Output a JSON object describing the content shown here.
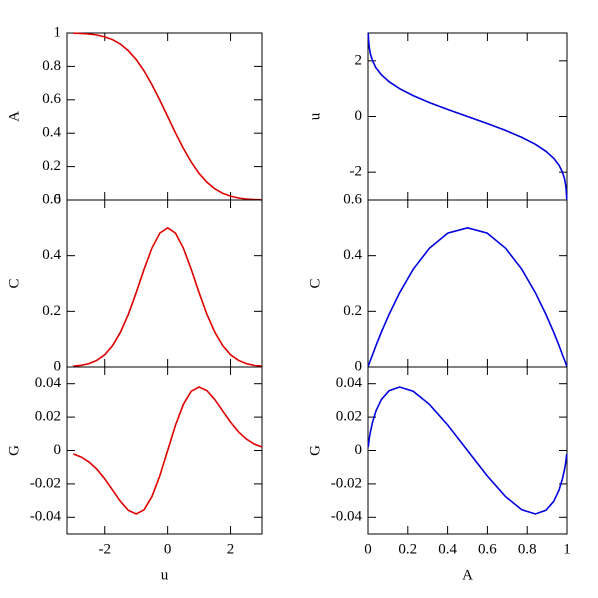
{
  "chart_data": [
    {
      "type": "line",
      "ylabel": "A",
      "color": "#e00000",
      "xlim": [
        -3.2,
        3
      ],
      "ylim": [
        0,
        1
      ],
      "xticks": [
        -2,
        0,
        2
      ],
      "yticks": [
        0,
        0.2,
        0.4,
        0.6,
        0.8,
        1
      ],
      "x": [
        -3,
        -2.75,
        -2.5,
        -2.25,
        -2,
        -1.75,
        -1.5,
        -1.25,
        -1,
        -0.75,
        -0.5,
        -0.25,
        0,
        0.25,
        0.5,
        0.75,
        1,
        1.25,
        1.5,
        1.75,
        2,
        2.25,
        2.5,
        2.75,
        3
      ],
      "values": [
        0.999,
        0.997,
        0.994,
        0.988,
        0.977,
        0.96,
        0.933,
        0.894,
        0.841,
        0.773,
        0.691,
        0.599,
        0.5,
        0.401,
        0.309,
        0.227,
        0.159,
        0.106,
        0.067,
        0.04,
        0.023,
        0.012,
        0.006,
        0.003,
        0.001
      ]
    },
    {
      "type": "line",
      "ylabel": "C",
      "color": "#e00000",
      "xlim": [
        -3.2,
        3
      ],
      "ylim": [
        0,
        0.6
      ],
      "xticks": [
        -2,
        0,
        2
      ],
      "yticks": [
        0,
        0.2,
        0.4,
        0.6
      ],
      "x": [
        -3,
        -2.75,
        -2.5,
        -2.25,
        -2,
        -1.75,
        -1.5,
        -1.25,
        -1,
        -0.75,
        -0.5,
        -0.25,
        0,
        0.25,
        0.5,
        0.75,
        1,
        1.25,
        1.5,
        1.75,
        2,
        2.25,
        2.5,
        2.75,
        3
      ],
      "values": [
        0.003,
        0.006,
        0.012,
        0.024,
        0.044,
        0.077,
        0.125,
        0.189,
        0.267,
        0.351,
        0.427,
        0.481,
        0.5,
        0.481,
        0.427,
        0.351,
        0.267,
        0.189,
        0.125,
        0.077,
        0.044,
        0.024,
        0.012,
        0.006,
        0.003
      ]
    },
    {
      "type": "line",
      "ylabel": "G",
      "xlabel": "u",
      "color": "#e00000",
      "xlim": [
        -3.2,
        3
      ],
      "ylim": [
        -0.05,
        0.05
      ],
      "xticks": [
        -2,
        0,
        2
      ],
      "yticks": [
        -0.04,
        -0.02,
        0,
        0.02,
        0.04
      ],
      "x": [
        -3,
        -2.75,
        -2.5,
        -2.25,
        -2,
        -1.75,
        -1.5,
        -1.25,
        -1,
        -0.75,
        -0.5,
        -0.25,
        0,
        0.25,
        0.5,
        0.75,
        1,
        1.25,
        1.5,
        1.75,
        2,
        2.25,
        2.5,
        2.75,
        3
      ],
      "values": [
        -0.0021,
        -0.0039,
        -0.0069,
        -0.0112,
        -0.017,
        -0.0237,
        -0.0305,
        -0.0358,
        -0.038,
        -0.0355,
        -0.0276,
        -0.0152,
        0,
        0.0152,
        0.0276,
        0.0355,
        0.038,
        0.0358,
        0.0305,
        0.0237,
        0.017,
        0.0112,
        0.0069,
        0.0039,
        0.0021
      ]
    },
    {
      "type": "line",
      "ylabel": "u",
      "color": "#0000e0",
      "xlim": [
        0,
        1
      ],
      "ylim": [
        -3,
        3
      ],
      "xticks": [
        0,
        0.2,
        0.4,
        0.6,
        0.8,
        1
      ],
      "yticks": [
        -2,
        0,
        2
      ],
      "x": [
        0.999,
        0.997,
        0.994,
        0.988,
        0.977,
        0.96,
        0.933,
        0.894,
        0.841,
        0.773,
        0.691,
        0.599,
        0.5,
        0.401,
        0.309,
        0.227,
        0.159,
        0.106,
        0.067,
        0.04,
        0.023,
        0.012,
        0.006,
        0.003,
        0.001
      ],
      "values": [
        -3,
        -2.75,
        -2.5,
        -2.25,
        -2,
        -1.75,
        -1.5,
        -1.25,
        -1,
        -0.75,
        -0.5,
        -0.25,
        0,
        0.25,
        0.5,
        0.75,
        1,
        1.25,
        1.5,
        1.75,
        2,
        2.25,
        2.5,
        2.75,
        3
      ]
    },
    {
      "type": "line",
      "ylabel": "C",
      "color": "#0000e0",
      "xlim": [
        0,
        1
      ],
      "ylim": [
        0,
        0.6
      ],
      "xticks": [
        0,
        0.2,
        0.4,
        0.6,
        0.8,
        1
      ],
      "yticks": [
        0,
        0.2,
        0.4,
        0.6
      ],
      "x": [
        0.999,
        0.997,
        0.994,
        0.988,
        0.977,
        0.96,
        0.933,
        0.894,
        0.841,
        0.773,
        0.691,
        0.599,
        0.5,
        0.401,
        0.309,
        0.227,
        0.159,
        0.106,
        0.067,
        0.04,
        0.023,
        0.012,
        0.006,
        0.003,
        0.001
      ],
      "values": [
        0.003,
        0.006,
        0.012,
        0.024,
        0.044,
        0.077,
        0.125,
        0.189,
        0.267,
        0.351,
        0.427,
        0.481,
        0.5,
        0.481,
        0.427,
        0.351,
        0.267,
        0.189,
        0.125,
        0.077,
        0.044,
        0.024,
        0.012,
        0.006,
        0.003
      ]
    },
    {
      "type": "line",
      "ylabel": "G",
      "xlabel": "A",
      "color": "#0000e0",
      "xlim": [
        0,
        1
      ],
      "ylim": [
        -0.05,
        0.05
      ],
      "xticks": [
        0,
        0.2,
        0.4,
        0.6,
        0.8,
        1
      ],
      "yticks": [
        -0.04,
        -0.02,
        0,
        0.02,
        0.04
      ],
      "x": [
        0.999,
        0.997,
        0.994,
        0.988,
        0.977,
        0.96,
        0.933,
        0.894,
        0.841,
        0.773,
        0.691,
        0.599,
        0.5,
        0.401,
        0.309,
        0.227,
        0.159,
        0.106,
        0.067,
        0.04,
        0.023,
        0.012,
        0.006,
        0.003,
        0.001
      ],
      "values": [
        -0.0021,
        -0.0039,
        -0.0069,
        -0.0112,
        -0.017,
        -0.0237,
        -0.0305,
        -0.0358,
        -0.038,
        -0.0355,
        -0.0276,
        -0.0152,
        0,
        0.0152,
        0.0276,
        0.0355,
        0.038,
        0.0358,
        0.0305,
        0.0237,
        0.017,
        0.0112,
        0.0069,
        0.0039,
        0.0021
      ]
    }
  ]
}
